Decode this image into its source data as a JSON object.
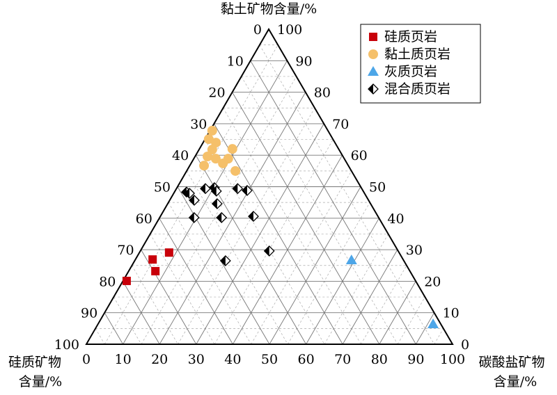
{
  "chart_data": {
    "type": "ternary",
    "title": "黏土矿物含量/%",
    "left_title": [
      "硅质矿物",
      "含量/%"
    ],
    "right_title": [
      "碳酸盐矿物",
      "含量/%"
    ],
    "carbonate_ticks": [
      0,
      10,
      20,
      30,
      40,
      50,
      60,
      70,
      80,
      90,
      100
    ],
    "silica_ticks": [
      0,
      10,
      20,
      30,
      40,
      50,
      60,
      70,
      80,
      90,
      100
    ],
    "clay_ticks": [
      0,
      10,
      20,
      30,
      40,
      50,
      60,
      70,
      80,
      90,
      100
    ],
    "grid": true,
    "legend": "top-right",
    "series": [
      {
        "name": "硅质页岩",
        "color": "#c8000a",
        "marker": "square",
        "clay": [
          20.1,
          26.9,
          23.2,
          29.1
        ],
        "carbonate": [
          1.0,
          4.7,
          7.3,
          8.1
        ]
      },
      {
        "name": "黏土质页岩",
        "color": "#f5c06a",
        "marker": "circle",
        "clay": [
          67.8,
          65.1,
          64.0,
          62.0,
          59.6,
          58.9,
          57.4,
          58.9,
          56.7,
          55.0,
          61.8
        ],
        "carbonate": [
          0.6,
          1.0,
          3.5,
          9.0,
          3.4,
          6.0,
          8.7,
          9.4,
          3.9,
          13.3,
          3.6
        ]
      },
      {
        "name": "灰质页岩",
        "color": "#4da6e8",
        "marker": "triangle",
        "clay": [
          26.7,
          6.4
        ],
        "carbonate": [
          59.1,
          91.5
        ]
      },
      {
        "name": "混合质页岩",
        "color": "#000000",
        "marker": "half-diamond",
        "clay": [
          48.3,
          47.9,
          45.7,
          49.4,
          49.7,
          48.6,
          49.4,
          48.8,
          44.6,
          40.2,
          40.2,
          40.6,
          29.6,
          26.5
        ],
        "carbonate": [
          3.3,
          4.3,
          6.7,
          7.9,
          10.2,
          11.3,
          16.7,
          19.6,
          13.5,
          9.4,
          16.9,
          25.4,
          35.2,
          24.8
        ]
      }
    ]
  }
}
